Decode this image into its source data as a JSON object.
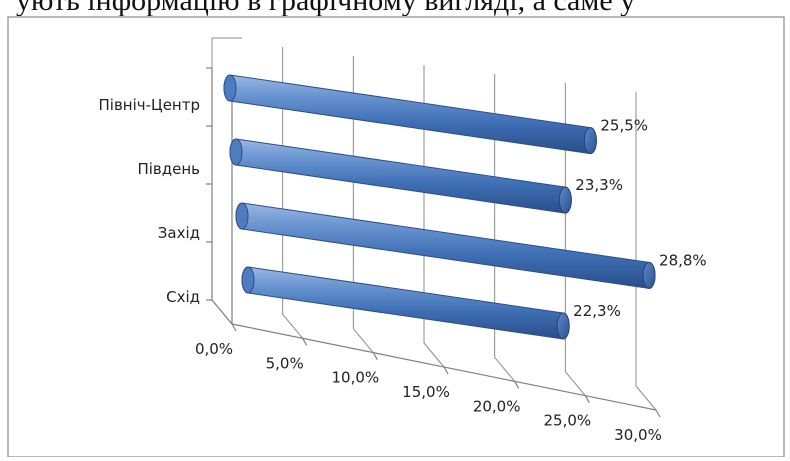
{
  "header_fragment": "ують інформацію в графічному вигляді, а саме у",
  "chart_data": {
    "type": "bar",
    "orientation": "horizontal",
    "style": "3d-cylinder",
    "title": "",
    "xlabel": "",
    "ylabel": "",
    "categories": [
      "Північ-Центр",
      "Південь",
      "Захід",
      "Схід"
    ],
    "values": [
      25.5,
      23.3,
      28.8,
      22.3
    ],
    "data_labels": [
      "25,5%",
      "23,3%",
      "28,8%",
      "22,3%"
    ],
    "xlim": [
      0,
      30
    ],
    "x_ticks": [
      0,
      5,
      10,
      15,
      20,
      25,
      30
    ],
    "x_tick_labels": [
      "0,0%",
      "5,0%",
      "10,0%",
      "15,0%",
      "20,0%",
      "25,0%",
      "30,0%"
    ],
    "grid": true,
    "legend": "none",
    "bar_color": "#4f81bd"
  }
}
